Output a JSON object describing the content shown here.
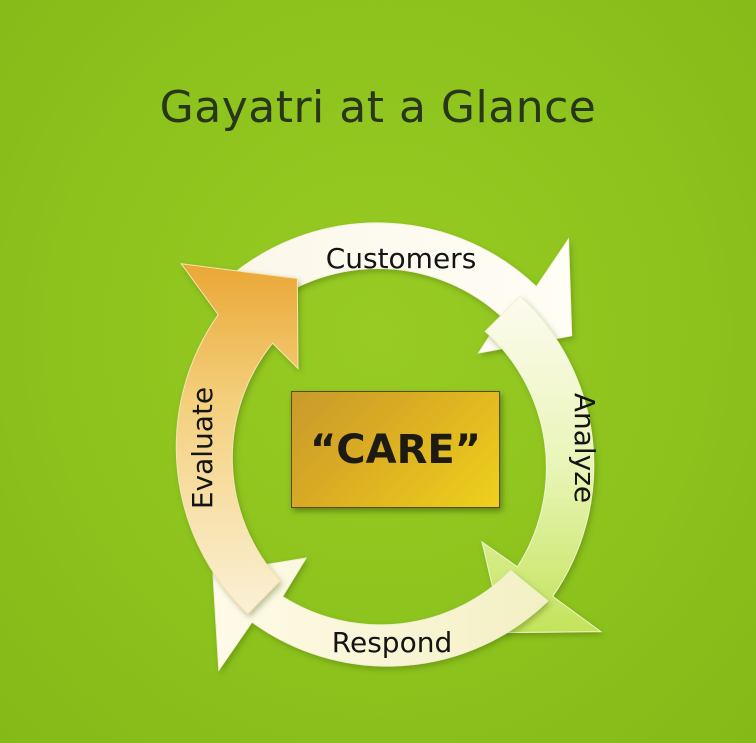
{
  "title": "Gayatri at a Glance",
  "center": {
    "label": "“CARE”"
  },
  "cycle": {
    "steps": [
      {
        "id": "customers",
        "label": "Customers"
      },
      {
        "id": "analyze",
        "label": "Analyze"
      },
      {
        "id": "respond",
        "label": "Respond"
      },
      {
        "id": "evaluate",
        "label": "Evaluate"
      }
    ]
  },
  "colors": {
    "background": "#8dc21f",
    "title_text": "#28371a",
    "arrow_light": "#fdf7e6",
    "arrow_green": "#d7ef8a",
    "arrow_orange": "#f0b84a",
    "center_box": "#dcae22"
  }
}
